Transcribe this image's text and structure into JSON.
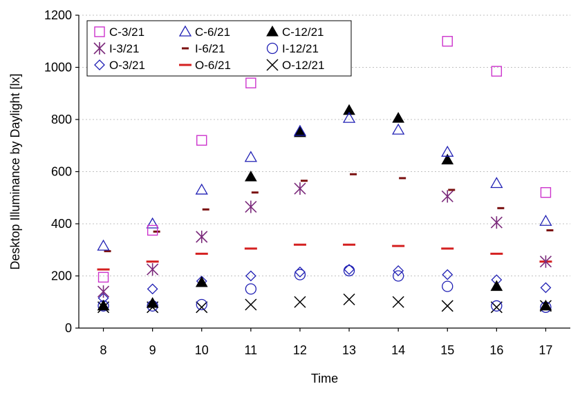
{
  "chart_data": {
    "type": "scatter",
    "xlabel": "Time",
    "ylabel": "Desktop Illuminance by Daylight [lx]",
    "xlim": [
      7.5,
      17.5
    ],
    "ylim": [
      0,
      1200
    ],
    "xticks": [
      8,
      9,
      10,
      11,
      12,
      13,
      14,
      15,
      16,
      17
    ],
    "yticks": [
      0,
      200,
      400,
      600,
      800,
      1000,
      1200
    ],
    "grid": "horizontal dotted",
    "legend_position": "top-left",
    "x": [
      8,
      9,
      10,
      11,
      12,
      13,
      14,
      15,
      16,
      17
    ],
    "series": [
      {
        "name": "C-3/21",
        "marker": "square",
        "color": "#cc33cc",
        "values": [
          195,
          375,
          720,
          940,
          null,
          null,
          null,
          1100,
          985,
          520
        ]
      },
      {
        "name": "C-6/21",
        "marker": "triangle-open",
        "color": "#1f1fb4",
        "values": [
          315,
          400,
          530,
          655,
          755,
          805,
          760,
          675,
          555,
          410
        ]
      },
      {
        "name": "C-12/21",
        "marker": "triangle-filled",
        "color": "#000000",
        "values": [
          85,
          95,
          175,
          580,
          750,
          835,
          805,
          645,
          160,
          85
        ]
      },
      {
        "name": "I-3/21",
        "marker": "asterisk",
        "color": "#7b2a7b",
        "values": [
          140,
          225,
          350,
          465,
          535,
          null,
          null,
          505,
          405,
          255
        ]
      },
      {
        "name": "I-6/21",
        "marker": "short-dash",
        "color": "#7a1010",
        "values": [
          295,
          370,
          455,
          520,
          565,
          590,
          575,
          530,
          460,
          375
        ]
      },
      {
        "name": "I-12/21",
        "marker": "circle",
        "color": "#1f1fb4",
        "values": [
          85,
          85,
          90,
          150,
          205,
          220,
          200,
          160,
          85,
          80
        ]
      },
      {
        "name": "O-3/21",
        "marker": "diamond",
        "color": "#1f1fb4",
        "values": [
          115,
          150,
          180,
          200,
          215,
          225,
          220,
          205,
          185,
          155
        ]
      },
      {
        "name": "O-6/21",
        "marker": "dash",
        "color": "#d42020",
        "values": [
          225,
          255,
          285,
          305,
          320,
          320,
          315,
          305,
          285,
          255
        ]
      },
      {
        "name": "O-12/21",
        "marker": "x",
        "color": "#000000",
        "values": [
          80,
          80,
          80,
          90,
          100,
          110,
          100,
          85,
          80,
          85
        ]
      }
    ]
  }
}
